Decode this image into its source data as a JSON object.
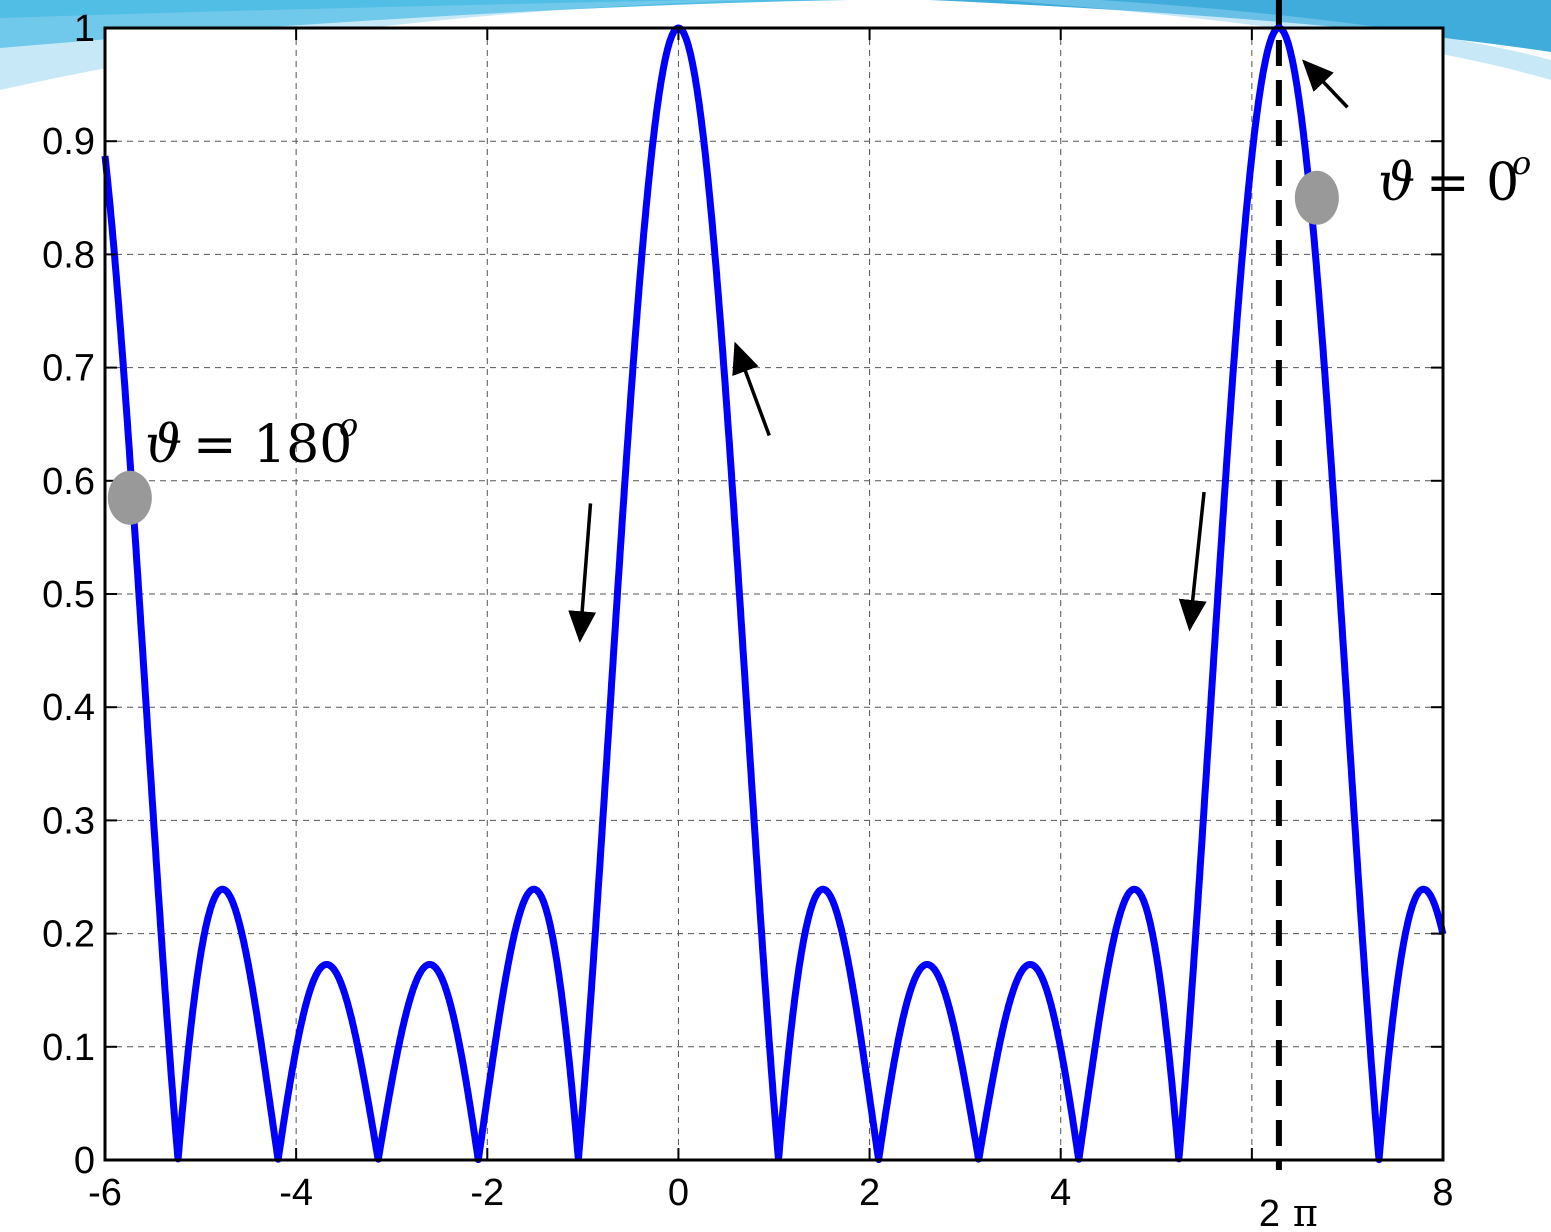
{
  "chart_data": {
    "type": "line",
    "title": "",
    "xlabel": "",
    "ylabel": "",
    "xlim": [
      -6,
      8
    ],
    "ylim": [
      0,
      1
    ],
    "xticks": [
      -6,
      -4,
      -2,
      0,
      2,
      4,
      6,
      8
    ],
    "xtick_labels": [
      "-6",
      "-4",
      "-2",
      "0",
      "2",
      "4",
      "",
      "8"
    ],
    "yticks": [
      0,
      0.1,
      0.2,
      0.3,
      0.4,
      0.5,
      0.6,
      0.7,
      0.8,
      0.9,
      1
    ],
    "ytick_labels": [
      "0",
      "0.1",
      "0.2",
      "0.3",
      "0.4",
      "0.5",
      "0.6",
      "0.7",
      "0.8",
      "0.9",
      "1"
    ],
    "grid": true,
    "series": [
      {
        "color": "#0000ff",
        "function": "abs(sin(3x)/(6 sin(x/2)))",
        "peaks": [
          {
            "x": -4.72,
            "y": 0.24
          },
          {
            "x": -3.66,
            "y": 0.17
          },
          {
            "x": -2.62,
            "y": 0.17
          },
          {
            "x": -1.5,
            "y": 0.24
          },
          {
            "x": 0,
            "y": 1.0
          },
          {
            "x": 1.5,
            "y": 0.24
          },
          {
            "x": 2.62,
            "y": 0.17
          },
          {
            "x": 3.66,
            "y": 0.17
          },
          {
            "x": 4.72,
            "y": 0.24
          },
          {
            "x": 6.283,
            "y": 1.0
          },
          {
            "x": 7.78,
            "y": 0.24
          }
        ],
        "zeros": [
          -5.24,
          -4.19,
          -3.14,
          -2.09,
          -1.05,
          1.05,
          2.09,
          3.14,
          4.19,
          5.24,
          7.33
        ]
      }
    ],
    "vertical_line": {
      "x": 6.283,
      "label_number": "2",
      "label_symbol": "π",
      "style": "dashed",
      "color": "#000000"
    },
    "markers": [
      {
        "x": -5.74,
        "y": 0.585,
        "color": "#999999"
      },
      {
        "x": 6.68,
        "y": 0.85,
        "color": "#999999"
      }
    ],
    "annotations": [
      {
        "symbol": "ϑ",
        "text": "= 180",
        "superscript": "o"
      },
      {
        "symbol": "ϑ",
        "text": "= 0",
        "superscript": "o"
      }
    ],
    "arrows": [
      {
        "from": [
          -0.92,
          0.58
        ],
        "to": [
          -1.03,
          0.46
        ]
      },
      {
        "from": [
          0.95,
          0.64
        ],
        "to": [
          0.6,
          0.72
        ]
      },
      {
        "from": [
          5.5,
          0.59
        ],
        "to": [
          5.35,
          0.47
        ]
      },
      {
        "from": [
          7.0,
          0.93
        ],
        "to": [
          6.55,
          0.97
        ]
      }
    ]
  }
}
